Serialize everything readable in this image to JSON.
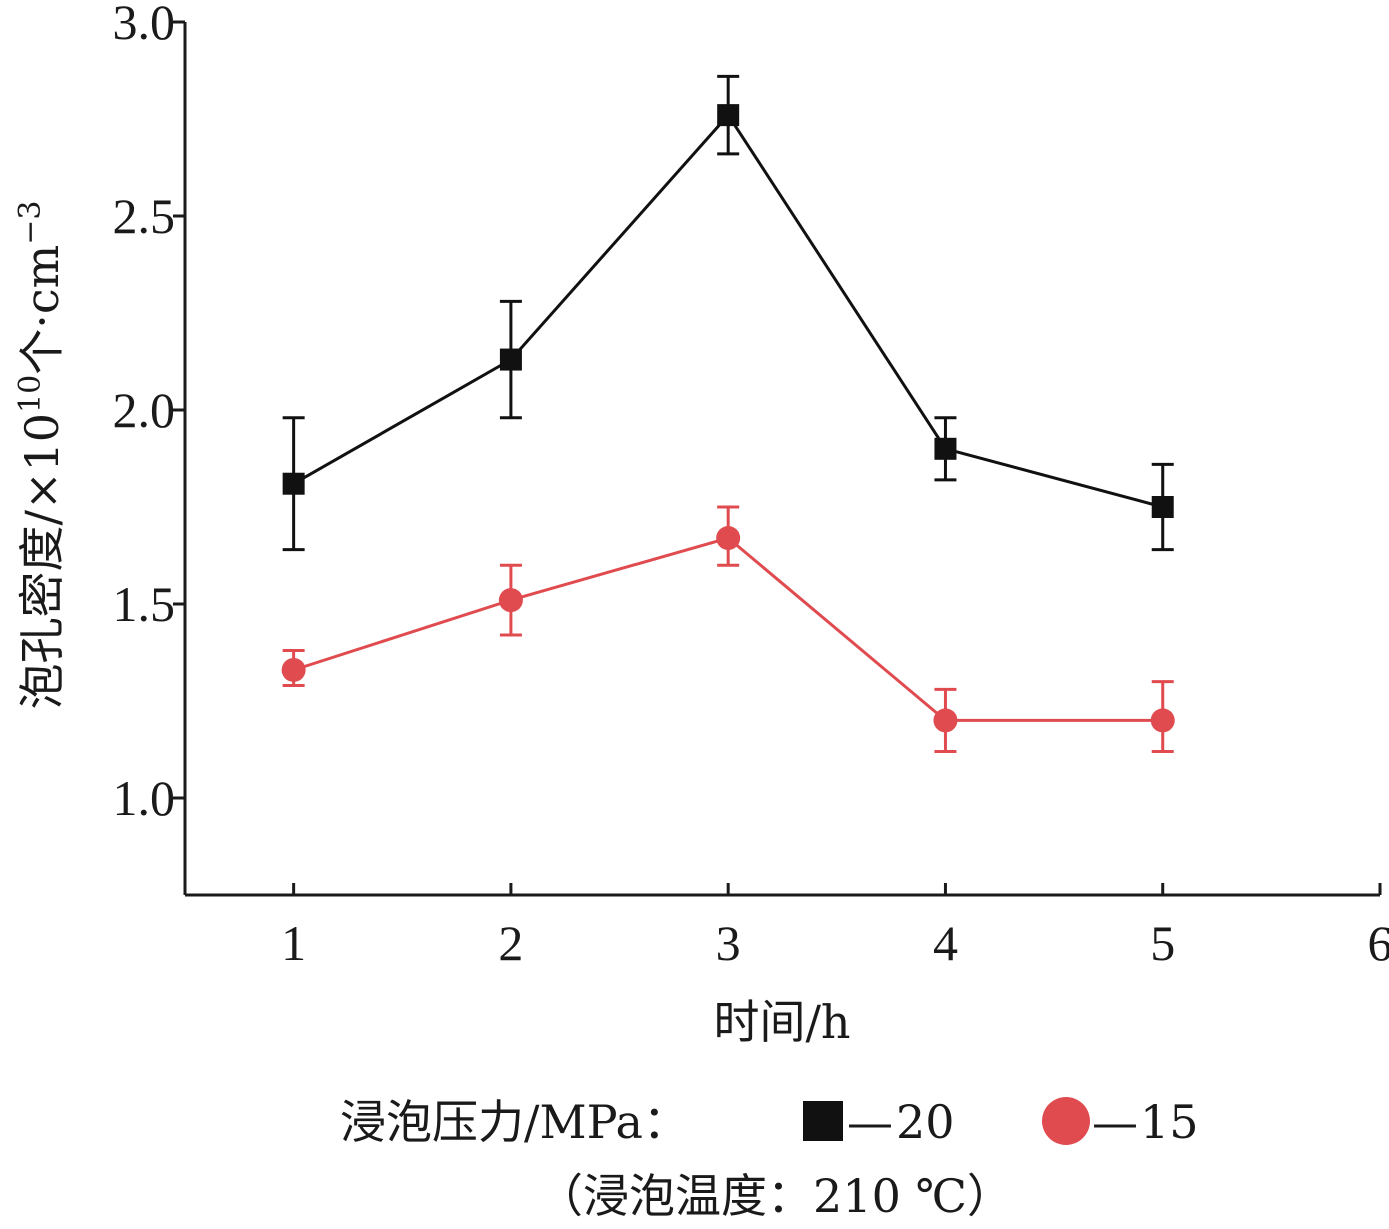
{
  "chart_data": {
    "type": "line",
    "xlabel": "时间/h",
    "ylabel": "泡孔密度/×10",
    "ylabel_sup1": "10",
    "ylabel_unit": "个·cm",
    "ylabel_sup2": "−3",
    "xlim": [
      0.5,
      6
    ],
    "ylim": [
      0.75,
      3.0
    ],
    "x_ticks": [
      "1",
      "2",
      "3",
      "4",
      "5",
      "6"
    ],
    "y_ticks": [
      "1.0",
      "1.5",
      "2.0",
      "2.5",
      "3.0"
    ],
    "x": [
      1,
      2,
      3,
      4,
      5
    ],
    "series": [
      {
        "name": "20",
        "color": "#111111",
        "marker": "square",
        "values": [
          1.81,
          2.13,
          2.76,
          1.9,
          1.75
        ],
        "error_low": [
          1.64,
          1.98,
          2.66,
          1.82,
          1.64
        ],
        "error_high": [
          1.98,
          2.28,
          2.86,
          1.98,
          1.86
        ]
      },
      {
        "name": "15",
        "color": "#e04b4f",
        "marker": "circle",
        "values": [
          1.33,
          1.51,
          1.67,
          1.2,
          1.2
        ],
        "error_low": [
          1.29,
          1.42,
          1.6,
          1.12,
          1.12
        ],
        "error_high": [
          1.38,
          1.6,
          1.75,
          1.28,
          1.3
        ]
      }
    ],
    "legend_title": "浸泡压力/MPa：",
    "legend_dash": "—",
    "note": "（浸泡温度：210 ℃）",
    "grid": false,
    "legend_position": "bottom"
  }
}
